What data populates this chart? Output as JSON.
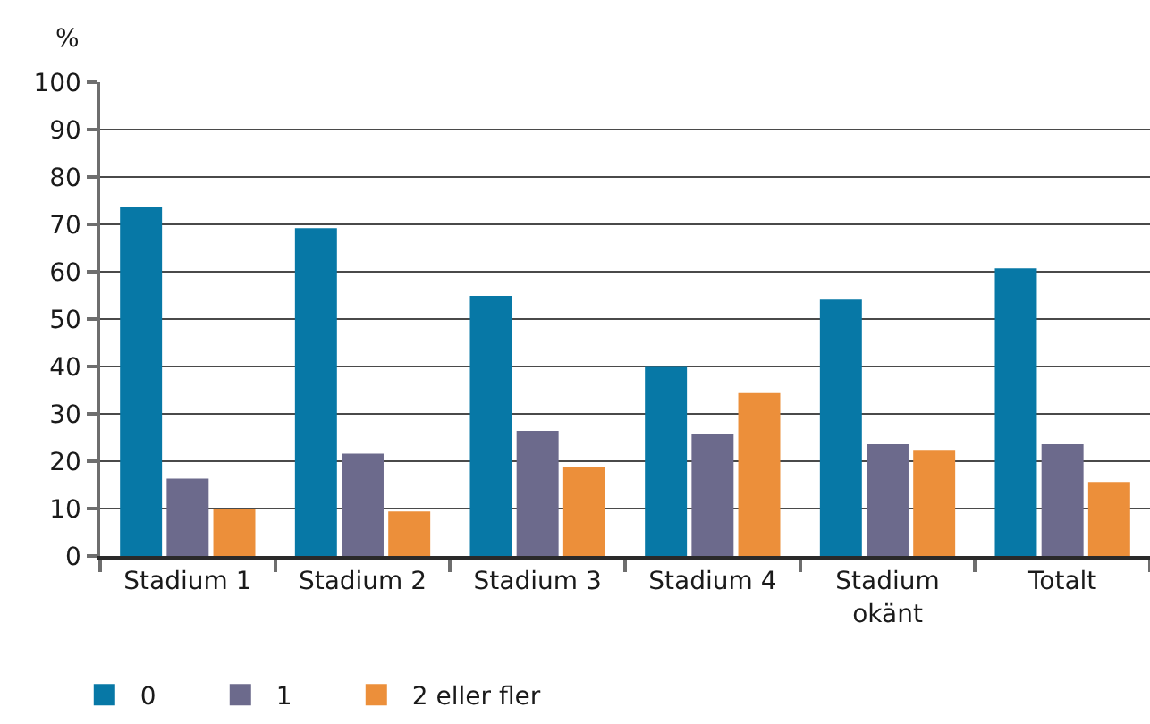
{
  "chart_data": {
    "type": "bar",
    "ylabel": "%",
    "categories": [
      "Stadium 1",
      "Stadium 2",
      "Stadium 3",
      "Stadium 4",
      "Stadium okänt",
      "Totalt"
    ],
    "series": [
      {
        "name": "0",
        "color": "#0778a6",
        "values": [
          73.6,
          69.2,
          54.9,
          39.9,
          54.1,
          60.7
        ]
      },
      {
        "name": "1",
        "color": "#6c6a8c",
        "values": [
          16.3,
          21.6,
          26.4,
          25.7,
          23.6,
          23.6
        ]
      },
      {
        "name": "2 eller fler",
        "color": "#ec8f3a",
        "values": [
          10.0,
          9.4,
          18.8,
          34.4,
          22.2,
          15.6
        ]
      }
    ],
    "ylim": [
      0,
      100
    ],
    "yticks": [
      0,
      10,
      20,
      30,
      40,
      50,
      60,
      70,
      80,
      90,
      100
    ],
    "grid": "y",
    "legend": "bottom left"
  }
}
